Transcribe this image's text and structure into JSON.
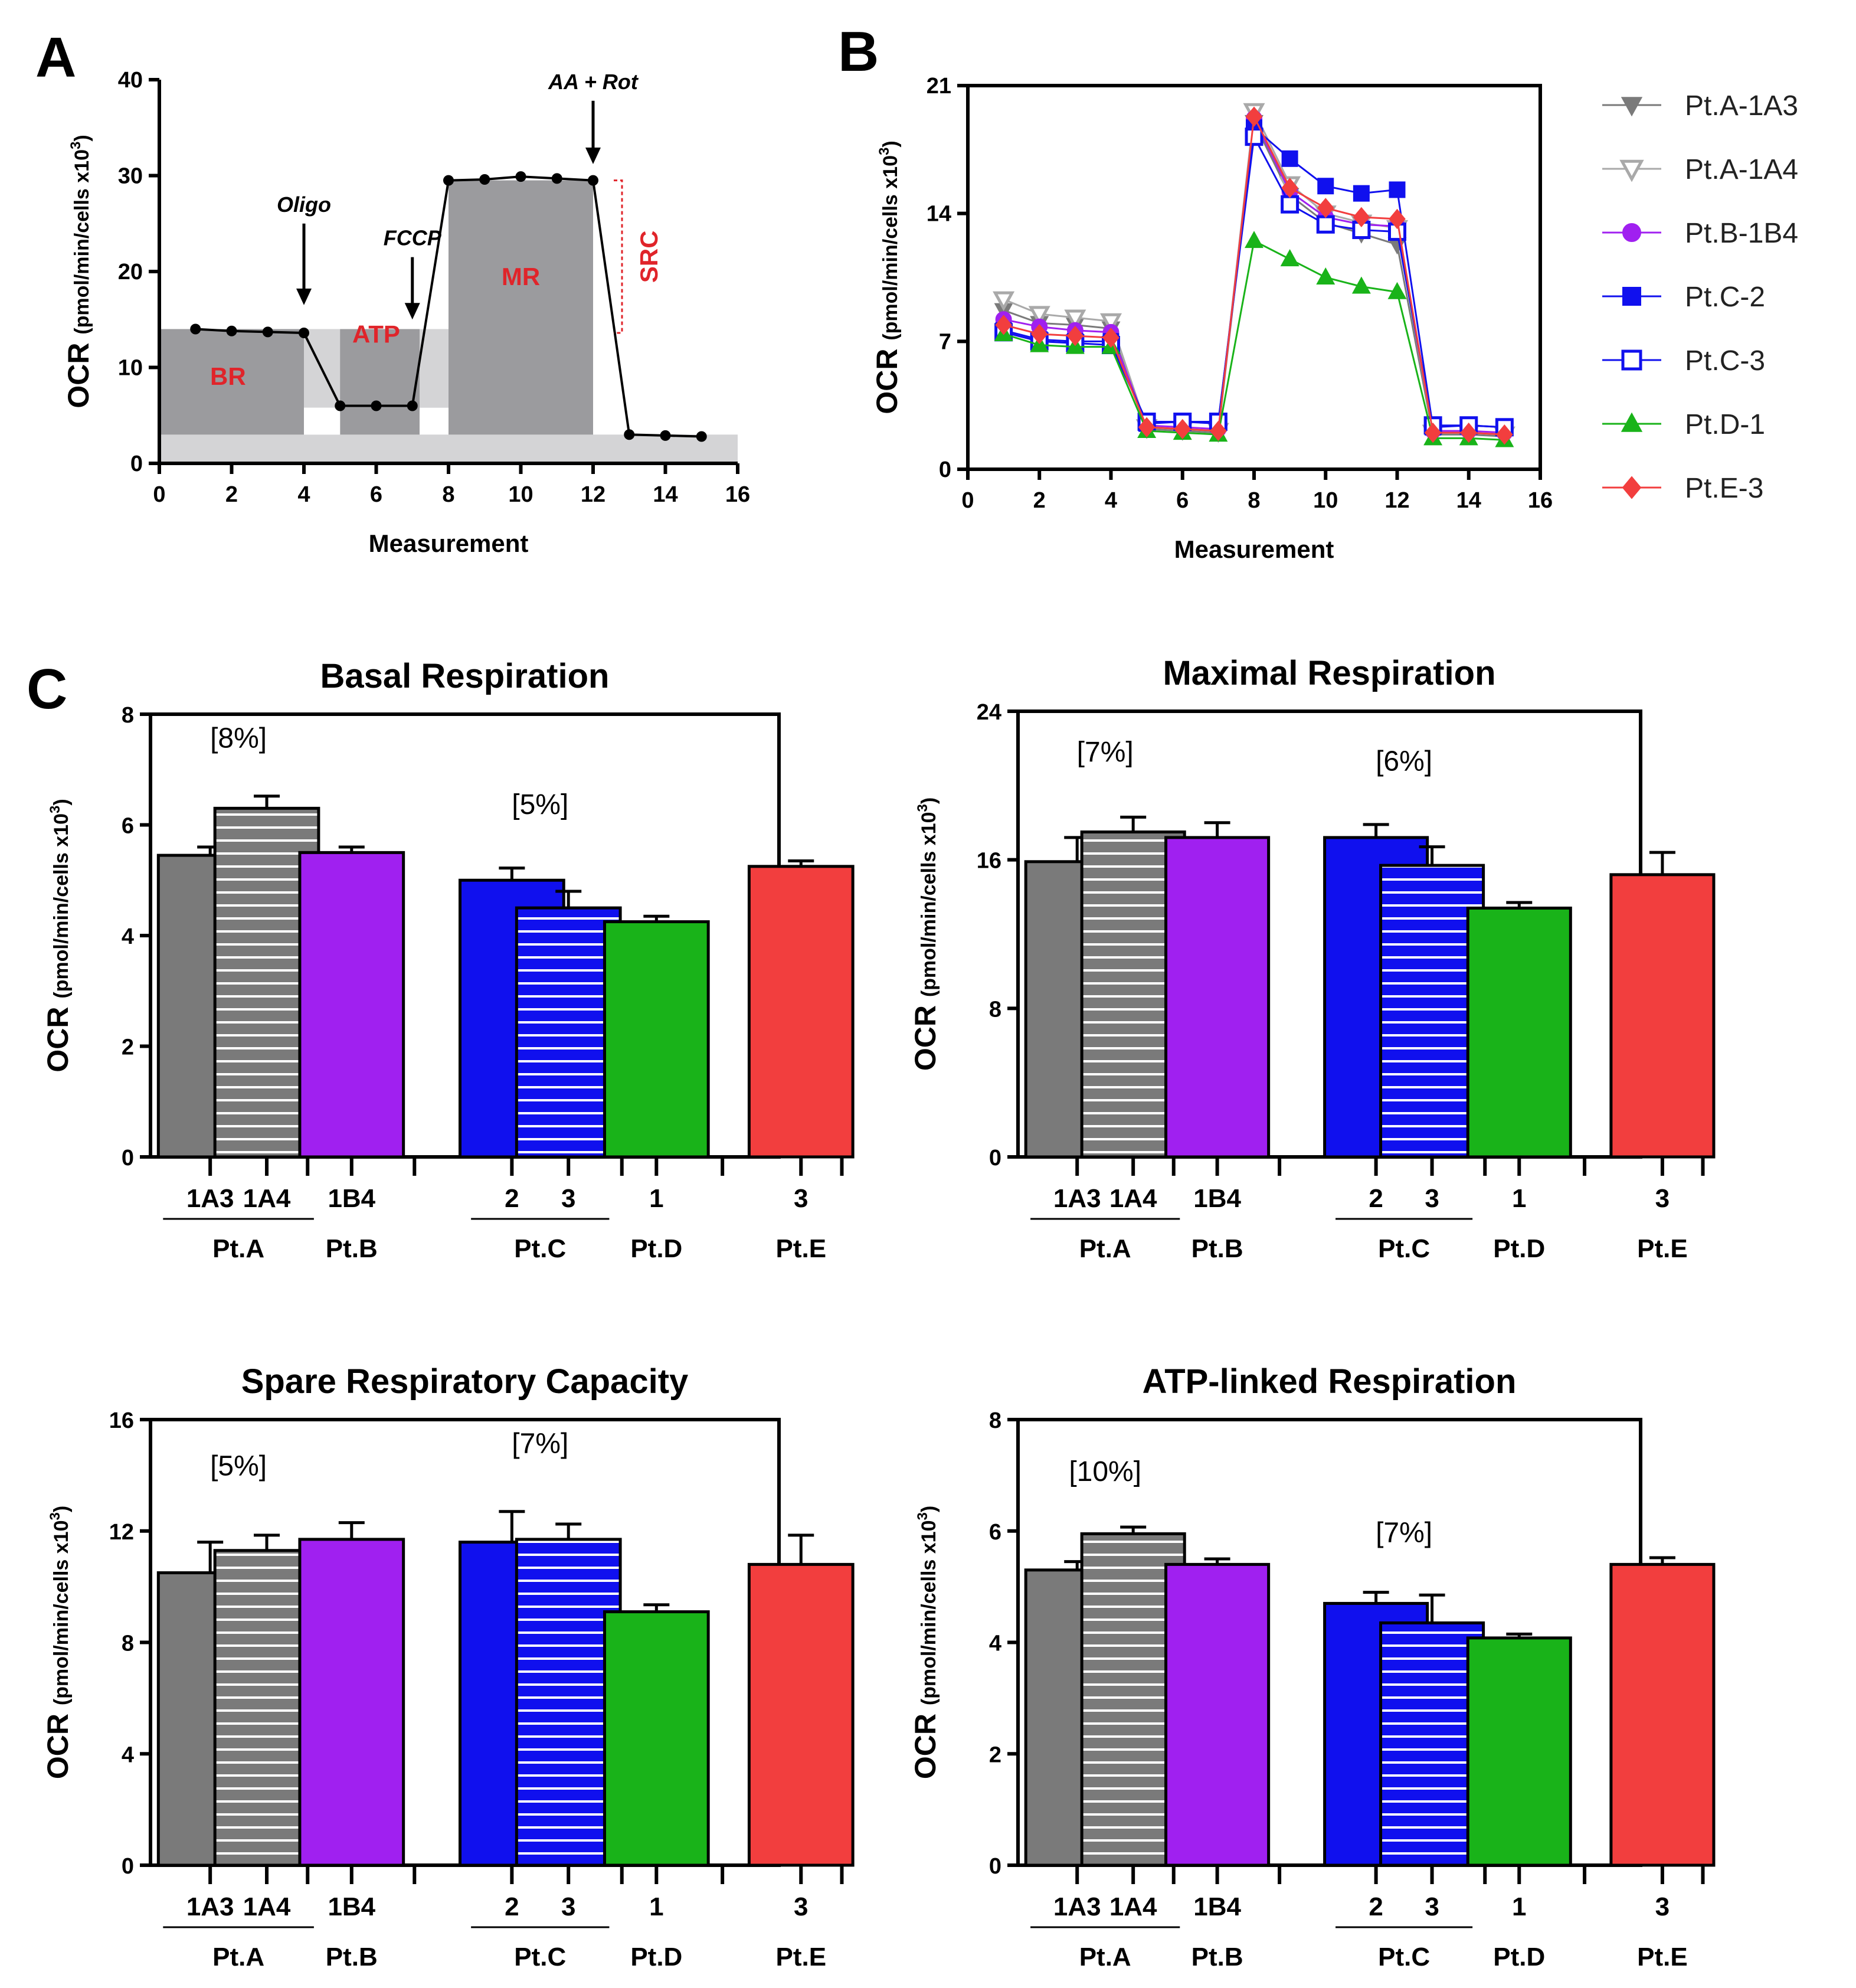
{
  "panel_labels": {
    "a": "A",
    "b": "B",
    "c": "C"
  },
  "colors": {
    "gray": "#7a7a7a",
    "light_gray": "#a9a9a9",
    "purple": "#a020f0",
    "blue": "#1010ee",
    "green": "#19b319",
    "red": "#f23e3e",
    "region_dark": "#9b9b9e",
    "region_light": "#d4d4d6"
  },
  "chart_data": [
    {
      "id": "panelA",
      "type": "line",
      "xlabel": "Measurement",
      "ylabel": "OCR (pmol/min/cells x10³)",
      "ylabel_main": "OCR",
      "ylabel_unit": "(pmol/min/cells x10",
      "ylabel_sup": "3",
      "ylabel_close": ")",
      "xlim": [
        0,
        16
      ],
      "ylim": [
        0,
        40
      ],
      "xticks": [
        0,
        2,
        4,
        6,
        8,
        10,
        12,
        14,
        16
      ],
      "yticks": [
        0,
        10,
        20,
        30,
        40
      ],
      "x": [
        1,
        2,
        3,
        4,
        5,
        6,
        7,
        8,
        9,
        10,
        11,
        12,
        13,
        14,
        15
      ],
      "y": [
        14,
        13.8,
        13.7,
        13.6,
        6,
        6,
        6,
        29.5,
        29.6,
        29.9,
        29.7,
        29.5,
        3,
        2.9,
        2.8
      ],
      "annotations": [
        {
          "label": "Oligo",
          "x": 4,
          "y_from": 25,
          "y_to": 16.5
        },
        {
          "label": "FCCP",
          "x": 7,
          "y_from": 21.5,
          "y_to": 15
        },
        {
          "label": "AA + Rot",
          "x": 12,
          "y_from": 37.8,
          "y_to": 31.2
        }
      ],
      "regions": [
        {
          "label": "BR",
          "x0": 0,
          "x1": 4,
          "y0": 3,
          "y1": 14,
          "color": "dark"
        },
        {
          "label": "ATP",
          "x0": 5,
          "x1": 7.2,
          "y0": 3,
          "y1": 14,
          "color": "dark"
        },
        {
          "label": "MR",
          "x0": 8,
          "x1": 12,
          "y0": 3,
          "y1": 29.5,
          "color": "dark"
        },
        {
          "label": "",
          "x0": 0,
          "x1": 16,
          "y0": 0,
          "y1": 3,
          "color": "light"
        },
        {
          "label": "",
          "x0": 4,
          "x1": 8,
          "y0": 5.8,
          "y1": 14,
          "color": "light"
        }
      ],
      "region_text": [
        {
          "label": "BR",
          "x": 1.9,
          "y": 8.2
        },
        {
          "label": "ATP",
          "x": 6,
          "y": 12.6
        },
        {
          "label": "MR",
          "x": 10,
          "y": 18.6
        }
      ],
      "src": {
        "label": "SRC",
        "y_top": 29.5,
        "y_bottom": 13.6
      }
    },
    {
      "id": "panelB",
      "type": "line",
      "xlabel": "Measurement",
      "ylabel": "OCR (pmol/min/cells x10³)",
      "ylabel_main": "OCR",
      "ylabel_unit": "(pmol/min/cells x10",
      "ylabel_sup": "3",
      "ylabel_close": ")",
      "xlim": [
        0,
        16
      ],
      "ylim": [
        0,
        21
      ],
      "xticks": [
        0,
        2,
        4,
        6,
        8,
        10,
        12,
        14,
        16
      ],
      "yticks": [
        0,
        7,
        14,
        21
      ],
      "x": [
        1,
        2,
        3,
        4,
        5,
        6,
        7,
        8,
        9,
        10,
        11,
        12,
        13,
        14,
        15
      ],
      "series": [
        {
          "name": "Pt.A-1A3",
          "color": "gray",
          "marker": "tri-down",
          "filled": true,
          "values": [
            8.7,
            8.0,
            7.9,
            7.7,
            2.2,
            2.1,
            2.0,
            19.0,
            15.0,
            13.5,
            12.9,
            12.3,
            1.9,
            1.9,
            1.8
          ]
        },
        {
          "name": "Pt.A-1A4",
          "color": "light_gray",
          "marker": "tri-down",
          "filled": false,
          "values": [
            9.3,
            8.5,
            8.3,
            8.1,
            2.3,
            2.2,
            2.1,
            19.6,
            15.6,
            14.0,
            13.5,
            13.2,
            2.0,
            2.0,
            1.9
          ]
        },
        {
          "name": "Pt.B-1B4",
          "color": "purple",
          "marker": "circle",
          "filled": true,
          "values": [
            8.2,
            7.8,
            7.6,
            7.5,
            2.4,
            2.3,
            2.2,
            19.2,
            15.2,
            13.8,
            13.4,
            13.3,
            2.1,
            2.1,
            2.0
          ]
        },
        {
          "name": "Pt.C-2",
          "color": "blue",
          "marker": "square",
          "filled": true,
          "values": [
            7.6,
            7.1,
            7.0,
            7.0,
            2.5,
            2.6,
            2.5,
            18.7,
            17.0,
            15.5,
            15.1,
            15.3,
            2.3,
            2.4,
            2.3
          ]
        },
        {
          "name": "Pt.C-3",
          "color": "blue",
          "marker": "square",
          "filled": false,
          "values": [
            7.5,
            7.0,
            6.9,
            6.8,
            2.6,
            2.6,
            2.6,
            18.2,
            14.5,
            13.4,
            13.1,
            13.0,
            2.4,
            2.4,
            2.3
          ]
        },
        {
          "name": "Pt.D-1",
          "color": "green",
          "marker": "tri-up",
          "filled": true,
          "values": [
            7.4,
            6.8,
            6.7,
            6.7,
            2.1,
            2.0,
            1.9,
            12.5,
            11.5,
            10.5,
            10.0,
            9.7,
            1.7,
            1.7,
            1.6
          ]
        },
        {
          "name": "Pt.E-3",
          "color": "red",
          "marker": "diamond",
          "filled": true,
          "values": [
            7.9,
            7.4,
            7.3,
            7.2,
            2.3,
            2.2,
            2.1,
            19.3,
            15.4,
            14.3,
            13.8,
            13.7,
            2.0,
            2.0,
            1.9
          ]
        }
      ]
    },
    {
      "id": "basal",
      "type": "bar",
      "title": "Basal Respiration",
      "ylabel": "OCR (pmol/min/cells x10³)",
      "ylabel_main": "OCR",
      "ylabel_unit": "(pmol/min/cells x10",
      "ylabel_sup": "3",
      "ylabel_close": ")",
      "ylim": [
        0,
        8
      ],
      "yticks": [
        0,
        2,
        4,
        6,
        8
      ],
      "categories": [
        "1A3",
        "1A4",
        "1B4",
        "2",
        "3",
        "1",
        "3"
      ],
      "values": [
        5.45,
        6.3,
        5.5,
        5.0,
        4.5,
        4.25,
        5.25
      ],
      "errors": [
        0.15,
        0.22,
        0.1,
        0.22,
        0.3,
        0.1,
        0.1
      ],
      "percent_labels": [
        {
          "text": "[8%]",
          "group": "A",
          "y": 7.4
        },
        {
          "text": "[5%]",
          "group": "C",
          "y": 6.2
        }
      ]
    },
    {
      "id": "maximal",
      "type": "bar",
      "title": "Maximal Respiration",
      "ylabel": "OCR (pmol/min/cells x10³)",
      "ylabel_main": "OCR",
      "ylabel_unit": "(pmol/min/cells x10",
      "ylabel_sup": "3",
      "ylabel_close": ")",
      "ylim": [
        0,
        24
      ],
      "yticks": [
        0,
        8,
        16,
        24
      ],
      "categories": [
        "1A3",
        "1A4",
        "1B4",
        "2",
        "3",
        "1",
        "3"
      ],
      "values": [
        15.9,
        17.5,
        17.2,
        17.2,
        15.7,
        13.4,
        15.2
      ],
      "errors": [
        1.3,
        0.8,
        0.8,
        0.7,
        1.0,
        0.3,
        1.2
      ],
      "percent_labels": [
        {
          "text": "[7%]",
          "group": "A",
          "y": 21.3
        },
        {
          "text": "[6%]",
          "group": "C",
          "y": 20.8
        }
      ]
    },
    {
      "id": "spare",
      "type": "bar",
      "title": "Spare Respiratory Capacity",
      "ylabel": "OCR (pmol/min/cells x10³)",
      "ylabel_main": "OCR",
      "ylabel_unit": "(pmol/min/cells x10",
      "ylabel_sup": "3",
      "ylabel_close": ")",
      "ylim": [
        0,
        16
      ],
      "yticks": [
        0,
        4,
        8,
        12,
        16
      ],
      "categories": [
        "1A3",
        "1A4",
        "1B4",
        "2",
        "3",
        "1",
        "3"
      ],
      "values": [
        10.5,
        11.3,
        11.7,
        11.6,
        11.7,
        9.1,
        10.8
      ],
      "errors": [
        1.1,
        0.55,
        0.6,
        1.1,
        0.55,
        0.25,
        1.05
      ],
      "percent_labels": [
        {
          "text": "[5%]",
          "group": "A",
          "y": 14.0
        },
        {
          "text": "[7%]",
          "group": "C",
          "y": 14.8
        }
      ]
    },
    {
      "id": "atp",
      "type": "bar",
      "title": "ATP-linked Respiration",
      "ylabel": "OCR (pmol/min/cells x10³)",
      "ylabel_main": "OCR",
      "ylabel_unit": "(pmol/min/cells x10",
      "ylabel_sup": "3",
      "ylabel_close": ")",
      "ylim": [
        0,
        8
      ],
      "yticks": [
        0,
        2,
        4,
        6,
        8
      ],
      "categories": [
        "1A3",
        "1A4",
        "1B4",
        "2",
        "3",
        "1",
        "3"
      ],
      "values": [
        5.3,
        5.95,
        5.4,
        4.7,
        4.35,
        4.08,
        5.4
      ],
      "errors": [
        0.15,
        0.12,
        0.1,
        0.2,
        0.5,
        0.07,
        0.12
      ],
      "percent_labels": [
        {
          "text": "[10%]",
          "group": "A",
          "y": 6.9
        },
        {
          "text": "[7%]",
          "group": "C",
          "y": 5.8
        }
      ]
    }
  ],
  "bar_style": {
    "colors": [
      "gray",
      "gray",
      "purple",
      "blue",
      "blue",
      "green",
      "red"
    ],
    "striped": [
      false,
      true,
      false,
      false,
      true,
      false,
      false
    ]
  },
  "groups": [
    {
      "label": "Pt.A"
    },
    {
      "label": "Pt.B"
    },
    {
      "label": "Pt.C"
    },
    {
      "label": "Pt.D"
    },
    {
      "label": "Pt.E"
    }
  ]
}
